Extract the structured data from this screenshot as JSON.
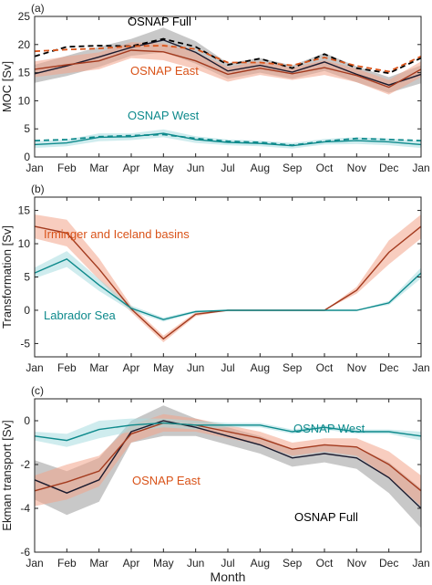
{
  "chart_data": [
    {
      "type": "line",
      "panel_label": "(a)",
      "ylabel": "MOC [Sv]",
      "ylim": [
        0,
        25
      ],
      "yticks": [
        0,
        5,
        10,
        15,
        20,
        25
      ],
      "categories": [
        "Jan",
        "Feb",
        "Mar",
        "Apr",
        "May",
        "Jun",
        "Jul",
        "Aug",
        "Sep",
        "Oct",
        "Nov",
        "Dec",
        "Jan"
      ],
      "annotations": [
        {
          "text": "OSNAP Full",
          "color": "#000000"
        },
        {
          "text": "OSNAP East",
          "color": "#d95319"
        },
        {
          "text": "OSNAP West",
          "color": "#0e8a8c"
        }
      ],
      "series": [
        {
          "name": "OSNAP Full",
          "color": "#1a1a2e",
          "band": "#9a9a9a",
          "style": "solid",
          "values": [
            14.8,
            16.2,
            17.8,
            19.5,
            20.8,
            18.6,
            15.3,
            16.3,
            15.1,
            16.9,
            14.7,
            12.8,
            14.7
          ],
          "spread": [
            1.6,
            1.8,
            1.8,
            1.5,
            2.2,
            2.0,
            1.4,
            1.3,
            1.2,
            1.6,
            1.4,
            1.4,
            1.6
          ]
        },
        {
          "name": "OSNAP East",
          "color": "#a33a1e",
          "band": "#f2a48a",
          "style": "solid",
          "values": [
            15.6,
            16.4,
            17.1,
            19.0,
            18.7,
            17.1,
            14.7,
            15.8,
            14.8,
            15.9,
            14.5,
            12.4,
            15.6
          ],
          "spread": [
            1.4,
            1.5,
            1.5,
            1.4,
            1.5,
            1.5,
            1.3,
            1.2,
            1.1,
            1.3,
            1.2,
            1.3,
            1.4
          ]
        },
        {
          "name": "OSNAP Full dashed",
          "color": "#000000",
          "style": "dashed",
          "values": [
            17.9,
            19.6,
            19.8,
            19.7,
            21.0,
            19.6,
            16.4,
            17.5,
            15.8,
            18.3,
            15.8,
            14.9,
            17.6
          ]
        },
        {
          "name": "OSNAP East dashed",
          "color": "#d95319",
          "style": "dashed",
          "values": [
            18.8,
            19.1,
            19.3,
            19.7,
            19.8,
            19.2,
            16.8,
            16.8,
            16.3,
            17.7,
            16.2,
            15.2,
            17.9
          ]
        },
        {
          "name": "OSNAP West",
          "color": "#0e8a8c",
          "band": "#a8dde0",
          "style": "solid",
          "values": [
            2.2,
            2.5,
            3.5,
            3.6,
            4.2,
            3.1,
            2.6,
            2.4,
            2.0,
            2.7,
            2.9,
            2.7,
            2.2
          ],
          "spread": [
            0.6,
            0.6,
            0.7,
            0.6,
            0.7,
            0.6,
            0.5,
            0.5,
            0.5,
            0.5,
            0.6,
            0.6,
            0.6
          ]
        },
        {
          "name": "OSNAP West dashed",
          "color": "#0e8a8c",
          "style": "dashed",
          "values": [
            2.9,
            3.1,
            3.6,
            3.8,
            4.0,
            3.3,
            2.8,
            2.6,
            2.1,
            2.8,
            3.3,
            3.1,
            2.9
          ]
        }
      ]
    },
    {
      "type": "line",
      "panel_label": "(b)",
      "ylabel": "Transformation [Sv]",
      "ylim": [
        -7,
        17
      ],
      "yticks": [
        -5,
        0,
        5,
        10,
        15
      ],
      "categories": [
        "Jan",
        "Feb",
        "Mar",
        "Apr",
        "May",
        "Jun",
        "Jul",
        "Aug",
        "Sep",
        "Oct",
        "Nov",
        "Dec",
        "Jan"
      ],
      "annotations": [
        {
          "text": "Irminger and Iceland basins",
          "color": "#d95319"
        },
        {
          "text": "Labrador Sea",
          "color": "#0e8a8c"
        }
      ],
      "series": [
        {
          "name": "Irminger and Iceland basins",
          "color": "#a33a1e",
          "band": "#f2a48a",
          "style": "solid",
          "values": [
            12.6,
            11.6,
            6.2,
            0.2,
            -4.3,
            -0.6,
            0.0,
            0.0,
            0.0,
            0.0,
            3.0,
            8.7,
            12.6
          ],
          "spread": [
            1.8,
            2.0,
            1.6,
            0.5,
            0.5,
            0.3,
            0.0,
            0.0,
            0.0,
            0.0,
            0.5,
            1.8,
            1.8
          ]
        },
        {
          "name": "Labrador Sea",
          "color": "#0e8a8c",
          "band": "#a8dde0",
          "style": "solid",
          "values": [
            5.6,
            7.7,
            3.8,
            0.3,
            -1.4,
            -0.2,
            0.0,
            0.0,
            0.0,
            0.0,
            0.0,
            1.1,
            5.6
          ],
          "spread": [
            0.8,
            1.2,
            0.9,
            0.4,
            0.3,
            0.2,
            0.0,
            0.0,
            0.0,
            0.0,
            0.0,
            0.3,
            0.8
          ]
        }
      ]
    },
    {
      "type": "line",
      "panel_label": "(c)",
      "ylabel": "Ekman transport [Sv]",
      "xlabel": "Month",
      "ylim": [
        -6,
        1
      ],
      "yticks": [
        -6,
        -4,
        -2,
        0
      ],
      "categories": [
        "Jan",
        "Feb",
        "Mar",
        "Apr",
        "May",
        "Jun",
        "Jul",
        "Aug",
        "Sep",
        "Oct",
        "Nov",
        "Dec",
        "Jan"
      ],
      "annotations": [
        {
          "text": "OSNAP West",
          "color": "#0e8a8c"
        },
        {
          "text": "OSNAP East",
          "color": "#d95319"
        },
        {
          "text": "OSNAP Full",
          "color": "#000000"
        }
      ],
      "series": [
        {
          "name": "OSNAP Full",
          "color": "#1a1a2e",
          "band": "#9a9a9a",
          "style": "solid",
          "values": [
            -2.7,
            -3.3,
            -2.7,
            -0.5,
            0.0,
            -0.3,
            -0.7,
            -1.1,
            -1.7,
            -1.5,
            -1.7,
            -2.6,
            -4.0
          ],
          "spread": [
            0.9,
            1.0,
            1.0,
            0.5,
            0.7,
            0.4,
            0.4,
            0.4,
            0.4,
            0.4,
            0.5,
            0.7,
            0.9
          ]
        },
        {
          "name": "OSNAP East",
          "color": "#a33a1e",
          "band": "#f2a48a",
          "style": "solid",
          "values": [
            -3.2,
            -2.8,
            -2.3,
            -0.6,
            -0.1,
            -0.2,
            -0.5,
            -0.8,
            -1.3,
            -1.1,
            -1.2,
            -2.0,
            -3.2
          ],
          "spread": [
            0.7,
            0.8,
            0.7,
            0.4,
            0.4,
            0.3,
            0.3,
            0.3,
            0.3,
            0.3,
            0.4,
            0.6,
            0.7
          ]
        },
        {
          "name": "OSNAP West",
          "color": "#0e8a8c",
          "band": "#a8dde0",
          "style": "solid",
          "values": [
            -0.7,
            -0.9,
            -0.4,
            -0.2,
            -0.1,
            -0.2,
            -0.2,
            -0.2,
            -0.5,
            -0.3,
            -0.5,
            -0.5,
            -0.7
          ],
          "spread": [
            0.2,
            0.3,
            0.4,
            0.3,
            0.2,
            0.2,
            0.1,
            0.1,
            0.1,
            0.1,
            0.1,
            0.1,
            0.2
          ]
        }
      ]
    }
  ]
}
